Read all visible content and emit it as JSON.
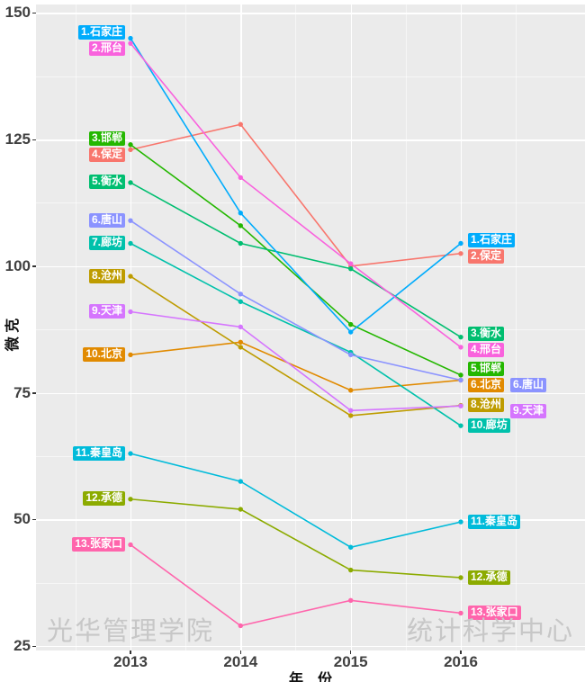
{
  "chart_data": {
    "type": "line",
    "title": "",
    "xlabel": "年　份",
    "ylabel": "微 克",
    "x": [
      2013,
      2014,
      2015,
      2016
    ],
    "x_tick_labels": [
      "2013",
      "2014",
      "2015",
      "2016"
    ],
    "y_ticks": [
      150,
      125,
      100,
      75,
      50,
      25
    ],
    "ylim": [
      25,
      150
    ],
    "grid": "white major and minor gridlines on gray panel",
    "panel_bg": "#EBEBEB",
    "legend_position": "direct labels at both line ends, format rank.name",
    "series": [
      {
        "name": "石家庄",
        "color": "#00ACFC",
        "values": [
          145,
          110.5,
          87,
          104.5
        ],
        "rank_2013": 1,
        "rank_2016": 1,
        "z": 9
      },
      {
        "name": "邢台",
        "color": "#F962DD",
        "values": [
          144,
          117.5,
          100.5,
          84
        ],
        "rank_2013": 2,
        "rank_2016": 4,
        "z": 12
      },
      {
        "name": "邯郸",
        "color": "#24B700",
        "values": [
          124,
          108,
          88.5,
          78.5
        ],
        "rank_2013": 3,
        "rank_2016": 5,
        "z": 5
      },
      {
        "name": "保定",
        "color": "#F8766D",
        "values": [
          123,
          128,
          100,
          102.5
        ],
        "rank_2013": 4,
        "rank_2016": 2,
        "z": 1
      },
      {
        "name": "衡水",
        "color": "#00BE70",
        "values": [
          116.5,
          104.5,
          99.5,
          86
        ],
        "rank_2013": 5,
        "rank_2016": 3,
        "z": 6
      },
      {
        "name": "唐山",
        "color": "#8B93FF",
        "values": [
          109,
          94.5,
          82.5,
          77.5
        ],
        "rank_2013": 6,
        "rank_2016": 6,
        "z": 10,
        "right_col": 2
      },
      {
        "name": "廊坊",
        "color": "#00C1AB",
        "values": [
          104.5,
          93,
          83,
          68.5
        ],
        "rank_2013": 7,
        "rank_2016": 10,
        "z": 7
      },
      {
        "name": "沧州",
        "color": "#BE9C00",
        "values": [
          98,
          84,
          70.5,
          72.5
        ],
        "rank_2013": 8,
        "rank_2016": 8,
        "z": 3
      },
      {
        "name": "天津",
        "color": "#D575FE",
        "values": [
          91,
          88,
          71.5,
          72.4
        ],
        "rank_2013": 9,
        "rank_2016": 9,
        "z": 11,
        "right_col": 2
      },
      {
        "name": "北京",
        "color": "#E18A00",
        "values": [
          82.5,
          85,
          75.5,
          77.5
        ],
        "rank_2013": 10,
        "rank_2016": 6,
        "z": 2
      },
      {
        "name": "秦皇岛",
        "color": "#00BBDA",
        "values": [
          63,
          57.5,
          44.5,
          49.5
        ],
        "rank_2013": 11,
        "rank_2016": 11,
        "z": 8
      },
      {
        "name": "承德",
        "color": "#8CAB00",
        "values": [
          54,
          52,
          40,
          38.5
        ],
        "rank_2013": 12,
        "rank_2016": 12,
        "z": 4
      },
      {
        "name": "张家口",
        "color": "#FF65AC",
        "values": [
          45,
          29,
          34,
          31.5
        ],
        "rank_2013": 13,
        "rank_2016": 13,
        "z": 13
      }
    ]
  },
  "watermarks": {
    "left": "光华管理学院",
    "right": "统计科学中心"
  }
}
